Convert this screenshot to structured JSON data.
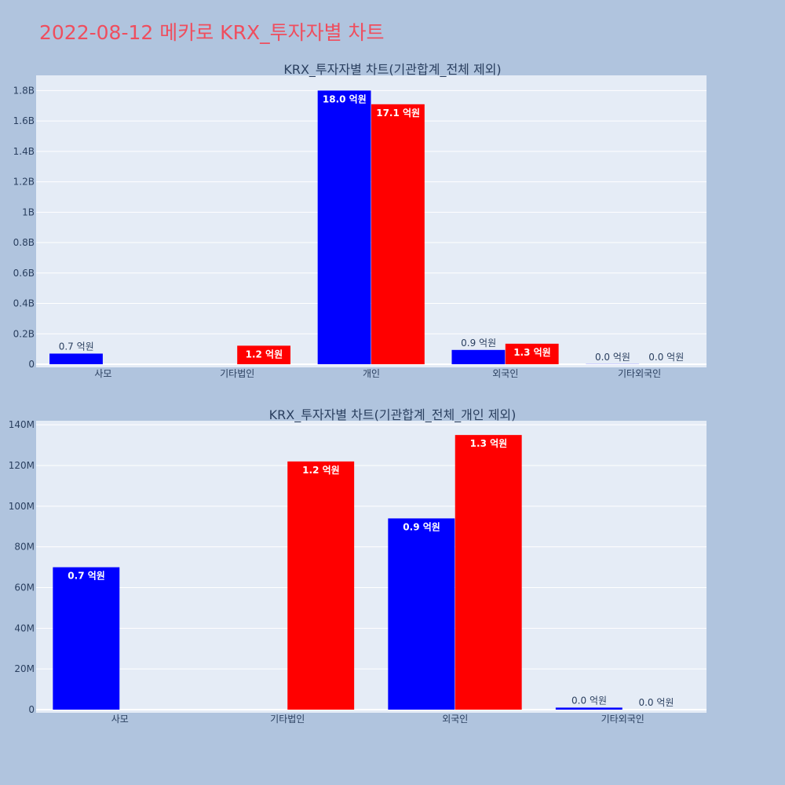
{
  "page": {
    "title": "2022-08-12 메카로 KRX_투자자별 차트",
    "colors": {
      "background": "#b0c4de",
      "plot_bg": "#e5ecf6",
      "title": "#ef4e5e",
      "buy": "#0000ff",
      "sell": "#ff0000"
    }
  },
  "chart_data": [
    {
      "type": "bar",
      "title": "KRX_투자자별 차트(기관합계_전체 제외)",
      "categories": [
        "사모",
        "기타법인",
        "개인",
        "외국인",
        "기타외국인"
      ],
      "series": [
        {
          "color": "#0000ff",
          "values": [
            70000000,
            0,
            1800000000,
            94000000,
            1000000
          ],
          "labels": [
            "0.7 억원",
            "",
            "18.0 억원",
            "0.9 억원",
            "0.0 억원"
          ]
        },
        {
          "color": "#ff0000",
          "values": [
            0,
            122000000,
            1710000000,
            135000000,
            0
          ],
          "labels": [
            "",
            "1.2 억원",
            "17.1 억원",
            "1.3 억원",
            "0.0 억원"
          ]
        }
      ],
      "ylim": [
        0,
        1900000000
      ],
      "yticks": [
        0,
        200000000,
        400000000,
        600000000,
        800000000,
        1000000000,
        1200000000,
        1400000000,
        1600000000,
        1800000000
      ],
      "ytick_labels": [
        "0",
        "0.2B",
        "0.4B",
        "0.6B",
        "0.8B",
        "1B",
        "1.2B",
        "1.4B",
        "1.6B",
        "1.8B"
      ],
      "grid": true,
      "legend": "none"
    },
    {
      "type": "bar",
      "title": "KRX_투자자별 차트(기관합계_전체_개인 제외)",
      "categories": [
        "사모",
        "기타법인",
        "외국인",
        "기타외국인"
      ],
      "series": [
        {
          "color": "#0000ff",
          "values": [
            70000000,
            0,
            94000000,
            1000000
          ],
          "labels": [
            "0.7 억원",
            "",
            "0.9 억원",
            "0.0 억원"
          ]
        },
        {
          "color": "#ff0000",
          "values": [
            0,
            122000000,
            135000000,
            0
          ],
          "labels": [
            "",
            "1.2 억원",
            "1.3 억원",
            "0.0 억원"
          ]
        }
      ],
      "ylim": [
        0,
        142000000
      ],
      "yticks": [
        0,
        20000000,
        40000000,
        60000000,
        80000000,
        100000000,
        120000000,
        140000000
      ],
      "ytick_labels": [
        "0",
        "20M",
        "40M",
        "60M",
        "80M",
        "100M",
        "120M",
        "140M"
      ],
      "grid": true,
      "legend": "none"
    }
  ]
}
